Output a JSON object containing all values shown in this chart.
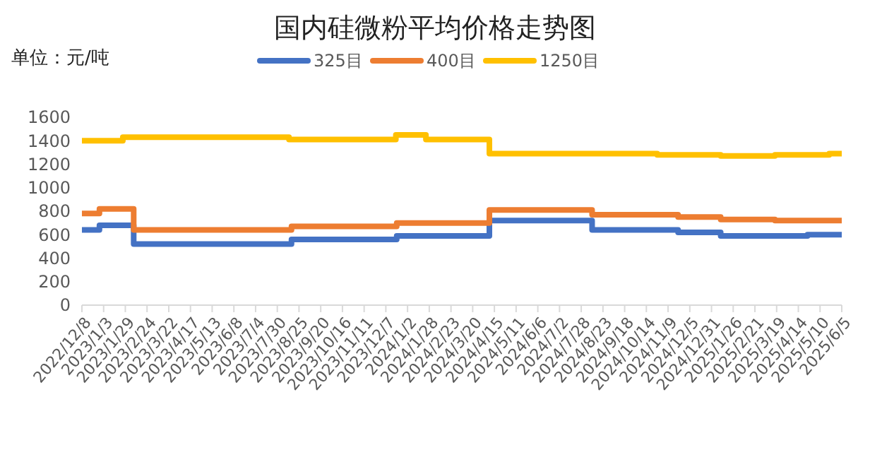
{
  "chart_data": {
    "type": "step",
    "title": "国内硅微粉平均价格走势图",
    "annotations": [
      "单位：元/吨"
    ],
    "legend": "top",
    "grid": false,
    "xlim": [
      "2022-12-08",
      "2025-06-05"
    ],
    "xticks": [
      {
        "value": "2022-12-08",
        "label": "2022/12/8"
      },
      {
        "value": "2023-01-03",
        "label": "2023/1/3"
      },
      {
        "value": "2023-01-29",
        "label": "2023/1/29"
      },
      {
        "value": "2023-02-24",
        "label": "2023/2/24"
      },
      {
        "value": "2023-03-22",
        "label": "2023/3/22"
      },
      {
        "value": "2023-04-17",
        "label": "2023/4/17"
      },
      {
        "value": "2023-05-13",
        "label": "2023/5/13"
      },
      {
        "value": "2023-06-08",
        "label": "2023/6/8"
      },
      {
        "value": "2023-07-04",
        "label": "2023/7/4"
      },
      {
        "value": "2023-07-30",
        "label": "2023/7/30"
      },
      {
        "value": "2023-08-25",
        "label": "2023/8/25"
      },
      {
        "value": "2023-09-20",
        "label": "2023/9/20"
      },
      {
        "value": "2023-10-16",
        "label": "2023/10/16"
      },
      {
        "value": "2023-11-11",
        "label": "2023/11/11"
      },
      {
        "value": "2023-12-07",
        "label": "2023/12/7"
      },
      {
        "value": "2024-01-02",
        "label": "2024/1/2"
      },
      {
        "value": "2024-01-28",
        "label": "2024/1/28"
      },
      {
        "value": "2024-02-23",
        "label": "2024/2/23"
      },
      {
        "value": "2024-03-20",
        "label": "2024/3/20"
      },
      {
        "value": "2024-04-15",
        "label": "2024/4/15"
      },
      {
        "value": "2024-05-11",
        "label": "2024/5/11"
      },
      {
        "value": "2024-06-06",
        "label": "2024/6/6"
      },
      {
        "value": "2024-07-02",
        "label": "2024/7/2"
      },
      {
        "value": "2024-07-28",
        "label": "2024/7/28"
      },
      {
        "value": "2024-08-23",
        "label": "2024/8/23"
      },
      {
        "value": "2024-09-18",
        "label": "2024/9/18"
      },
      {
        "value": "2024-10-14",
        "label": "2024/10/14"
      },
      {
        "value": "2024-11-09",
        "label": "2024/11/9"
      },
      {
        "value": "2024-12-05",
        "label": "2024/12/5"
      },
      {
        "value": "2024-12-31",
        "label": "2024/12/31"
      },
      {
        "value": "2025-01-26",
        "label": "2025/1/26"
      },
      {
        "value": "2025-02-21",
        "label": "2025/2/21"
      },
      {
        "value": "2025-03-19",
        "label": "2025/3/19"
      },
      {
        "value": "2025-04-14",
        "label": "2025/4/14"
      },
      {
        "value": "2025-05-10",
        "label": "2025/5/10"
      },
      {
        "value": "2025-06-05",
        "label": "2025/6/5"
      }
    ],
    "ylim": [
      0,
      1600
    ],
    "yticks": [
      0,
      200,
      400,
      600,
      800,
      1000,
      1200,
      1400,
      1600
    ],
    "series": [
      {
        "name": "325目",
        "color": "#4472c4",
        "x": [
          "2022-12-08",
          "2022-12-29",
          "2023-02-08",
          "2023-08-16",
          "2023-12-20",
          "2024-04-09",
          "2024-08-10",
          "2024-11-21",
          "2025-01-11",
          "2025-04-25",
          "2025-06-05"
        ],
        "values": [
          640,
          680,
          520,
          560,
          590,
          720,
          640,
          620,
          590,
          600,
          600
        ]
      },
      {
        "name": "400目",
        "color": "#ed7d31",
        "x": [
          "2022-12-08",
          "2022-12-29",
          "2023-02-08",
          "2023-08-16",
          "2023-12-20",
          "2024-04-09",
          "2024-08-10",
          "2024-11-21",
          "2025-01-11",
          "2025-03-17",
          "2025-06-05"
        ],
        "values": [
          780,
          820,
          640,
          670,
          700,
          810,
          770,
          750,
          730,
          720,
          720
        ]
      },
      {
        "name": "1250目",
        "color": "#ffc000",
        "x": [
          "2022-12-08",
          "2023-01-26",
          "2023-08-13",
          "2023-12-19",
          "2024-01-24",
          "2024-04-09",
          "2024-10-27",
          "2025-01-11",
          "2025-03-17",
          "2025-05-21",
          "2025-06-05"
        ],
        "values": [
          1400,
          1430,
          1410,
          1450,
          1410,
          1290,
          1280,
          1270,
          1280,
          1290,
          1290
        ]
      }
    ]
  }
}
